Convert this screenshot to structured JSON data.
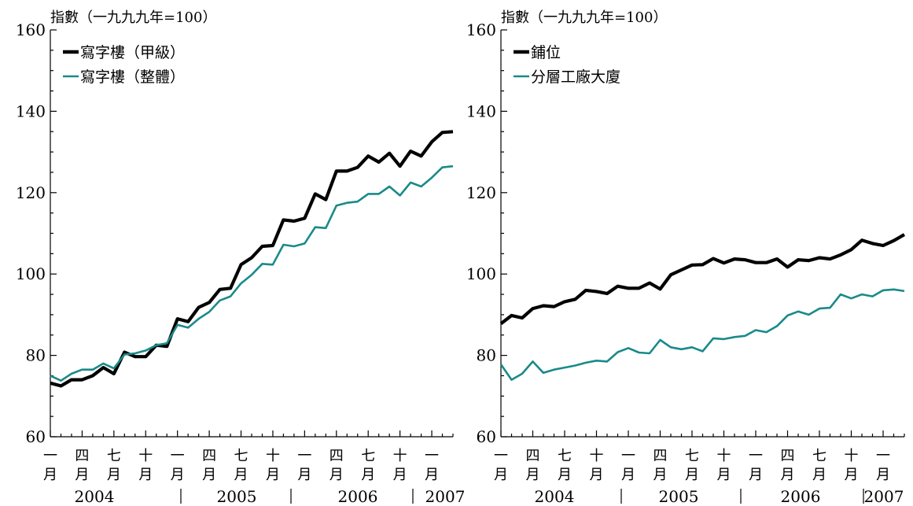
{
  "colors": {
    "black": "#000000",
    "teal": "#1a8a8a"
  },
  "chart_data": [
    {
      "type": "line",
      "unit_label": "指數（一九九九年=100）",
      "ylim": [
        60,
        160
      ],
      "yticks": [
        "60",
        "80",
        "100",
        "120",
        "140",
        "160"
      ],
      "x_tick_labels": [
        {
          "top": "一",
          "bottom": "月"
        },
        {
          "top": "四",
          "bottom": "月"
        },
        {
          "top": "七",
          "bottom": "月"
        },
        {
          "top": "十",
          "bottom": "月"
        },
        {
          "top": "一",
          "bottom": "月"
        },
        {
          "top": "四",
          "bottom": "月"
        },
        {
          "top": "七",
          "bottom": "月"
        },
        {
          "top": "十",
          "bottom": "月"
        },
        {
          "top": "一",
          "bottom": "月"
        },
        {
          "top": "四",
          "bottom": "月"
        },
        {
          "top": "七",
          "bottom": "月"
        },
        {
          "top": "十",
          "bottom": "月"
        },
        {
          "top": "一",
          "bottom": "月"
        }
      ],
      "years": [
        "2004",
        "2005",
        "2006",
        "2007"
      ],
      "legend_position": "top-left",
      "series": [
        {
          "name": "寫字樓（甲級）",
          "color": "#000000",
          "values": [
            73.2,
            72.5,
            74.0,
            74.0,
            75.0,
            77.0,
            75.5,
            80.8,
            79.7,
            79.7,
            82.5,
            82.2,
            89.0,
            88.3,
            91.8,
            93.0,
            96.2,
            96.5,
            102.3,
            104.0,
            106.8,
            107.0,
            113.3,
            113.0,
            113.7,
            119.7,
            118.3,
            125.3,
            125.3,
            126.2,
            129.0,
            127.5,
            129.7,
            126.5,
            130.2,
            129.0,
            132.5,
            134.8,
            135.0
          ]
        },
        {
          "name": "寫字樓（整體）",
          "color": "#1a8a8a",
          "values": [
            75.0,
            73.8,
            75.5,
            76.5,
            76.5,
            78.0,
            76.8,
            80.2,
            80.5,
            81.2,
            82.5,
            83.0,
            87.5,
            86.8,
            89.0,
            90.7,
            93.5,
            94.5,
            97.7,
            99.8,
            102.5,
            102.3,
            107.2,
            106.8,
            107.5,
            111.5,
            111.3,
            116.8,
            117.5,
            117.8,
            119.7,
            119.7,
            121.5,
            119.3,
            122.5,
            121.5,
            123.7,
            126.2,
            126.5
          ]
        }
      ]
    },
    {
      "type": "line",
      "unit_label": "指數（一九九九年=100）",
      "ylim": [
        60,
        160
      ],
      "yticks": [
        "60",
        "80",
        "100",
        "120",
        "140",
        "160"
      ],
      "x_tick_labels": [
        {
          "top": "一",
          "bottom": "月"
        },
        {
          "top": "四",
          "bottom": "月"
        },
        {
          "top": "七",
          "bottom": "月"
        },
        {
          "top": "十",
          "bottom": "月"
        },
        {
          "top": "一",
          "bottom": "月"
        },
        {
          "top": "四",
          "bottom": "月"
        },
        {
          "top": "七",
          "bottom": "月"
        },
        {
          "top": "十",
          "bottom": "月"
        },
        {
          "top": "一",
          "bottom": "月"
        },
        {
          "top": "四",
          "bottom": "月"
        },
        {
          "top": "七",
          "bottom": "月"
        },
        {
          "top": "十",
          "bottom": "月"
        },
        {
          "top": "一",
          "bottom": "月"
        }
      ],
      "years": [
        "2004",
        "2005",
        "2006",
        "2007"
      ],
      "legend_position": "top-left",
      "series": [
        {
          "name": "鋪位",
          "color": "#000000",
          "values": [
            87.8,
            89.8,
            89.2,
            91.5,
            92.2,
            92.0,
            93.2,
            93.8,
            96.0,
            95.7,
            95.2,
            97.0,
            96.5,
            96.5,
            97.8,
            96.3,
            99.8,
            101.0,
            102.2,
            102.3,
            103.8,
            102.7,
            103.7,
            103.5,
            102.8,
            102.8,
            103.7,
            101.7,
            103.5,
            103.3,
            104.0,
            103.7,
            104.7,
            106.0,
            108.3,
            107.5,
            107.0,
            108.2,
            109.7
          ]
        },
        {
          "name": "分層工廠大廈",
          "color": "#1a8a8a",
          "values": [
            77.8,
            74.0,
            75.5,
            78.5,
            75.7,
            76.5,
            77.0,
            77.5,
            78.2,
            78.7,
            78.5,
            80.8,
            81.8,
            80.7,
            80.5,
            83.8,
            82.0,
            81.5,
            82.0,
            81.0,
            84.2,
            84.0,
            84.5,
            84.8,
            86.2,
            85.7,
            87.2,
            89.8,
            90.8,
            90.0,
            91.5,
            91.7,
            95.0,
            94.0,
            95.0,
            94.5,
            96.0,
            96.2,
            95.8
          ]
        }
      ]
    }
  ]
}
